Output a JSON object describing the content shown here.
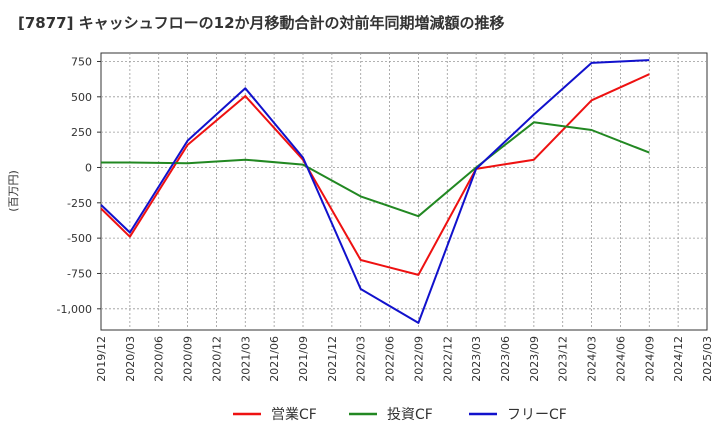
{
  "chart_data": {
    "type": "line",
    "title": "[7877]  キャッシュフローの12か月移動合計の対前年同期増減額の推移",
    "ylabel": "(百万円)",
    "xlabel": "",
    "x": [
      "2019/12",
      "2020/03",
      "2020/06",
      "2020/09",
      "2020/12",
      "2021/03",
      "2021/06",
      "2021/09",
      "2021/12",
      "2022/03",
      "2022/06",
      "2022/09",
      "2022/12",
      "2023/03",
      "2023/06",
      "2023/09",
      "2023/12",
      "2024/03",
      "2024/06",
      "2024/09",
      "2024/12",
      "2025/03"
    ],
    "ylim": [
      -1150,
      810
    ],
    "yticks": [
      750,
      500,
      250,
      0,
      -250,
      -500,
      -750,
      -1000
    ],
    "ytick_labels": [
      "750",
      "500",
      "250",
      "0",
      "-250",
      "-500",
      "-750",
      "-1,000"
    ],
    "grid": true,
    "legend_position": "bottom",
    "series": [
      {
        "name": "営業CF",
        "color": "#ee1111",
        "values": [
          -290,
          -490,
          null,
          160,
          null,
          505,
          null,
          55,
          null,
          -655,
          null,
          -760,
          null,
          -10,
          null,
          55,
          null,
          475,
          null,
          660,
          null,
          null
        ]
      },
      {
        "name": "投資CF",
        "color": "#228822",
        "values": [
          35,
          35,
          null,
          30,
          null,
          55,
          null,
          20,
          null,
          -205,
          null,
          -345,
          null,
          0,
          null,
          320,
          null,
          265,
          null,
          105,
          null,
          null
        ]
      },
      {
        "name": "フリーCF",
        "color": "#1111cc",
        "values": [
          -265,
          -460,
          null,
          190,
          null,
          560,
          null,
          70,
          null,
          -860,
          null,
          -1100,
          null,
          -10,
          null,
          375,
          null,
          740,
          null,
          760,
          null,
          null
        ]
      }
    ]
  }
}
